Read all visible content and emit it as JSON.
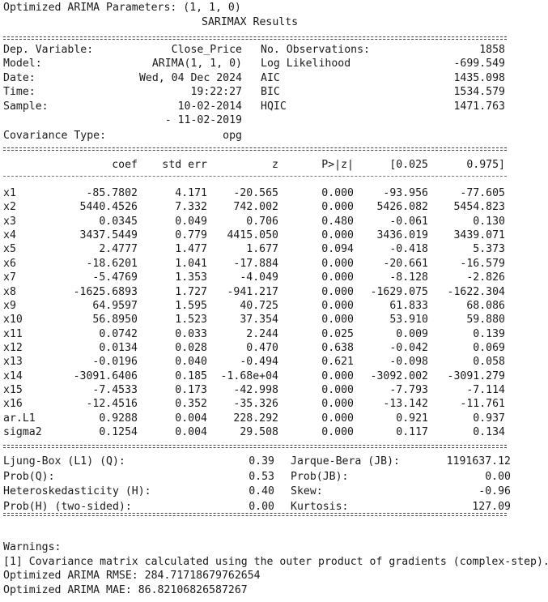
{
  "header_line": "Optimized ARIMA Parameters: (1, 1, 0)",
  "results_title": "SARIMAX Results",
  "info": {
    "dep_var_label": "Dep. Variable:",
    "dep_var_value": "Close_Price",
    "nobs_label": "No. Observations:",
    "nobs_value": "1858",
    "model_label": "Model:",
    "model_value": "ARIMA(1, 1, 0)",
    "loglik_label": "Log Likelihood",
    "loglik_value": "-699.549",
    "date_label": "Date:",
    "date_value": "Wed, 04 Dec 2024",
    "aic_label": "AIC",
    "aic_value": "1435.098",
    "time_label": "Time:",
    "time_value": "19:22:27",
    "bic_label": "BIC",
    "bic_value": "1534.579",
    "sample_label": "Sample:",
    "sample_start": "10-02-2014",
    "hqic_label": "HQIC",
    "hqic_value": "1471.763",
    "sample_end": "- 11-02-2019",
    "cov_label": "Covariance Type:",
    "cov_value": "opg"
  },
  "coef_headers": [
    "coef",
    "std err",
    "z",
    "P>|z|",
    "[0.025",
    "0.975]"
  ],
  "coef_rows": [
    [
      "x1",
      "-85.7802",
      "4.171",
      "-20.565",
      "0.000",
      "-93.956",
      "-77.605"
    ],
    [
      "x2",
      "5440.4526",
      "7.332",
      "742.002",
      "0.000",
      "5426.082",
      "5454.823"
    ],
    [
      "x3",
      "0.0345",
      "0.049",
      "0.706",
      "0.480",
      "-0.061",
      "0.130"
    ],
    [
      "x4",
      "3437.5449",
      "0.779",
      "4415.050",
      "0.000",
      "3436.019",
      "3439.071"
    ],
    [
      "x5",
      "2.4777",
      "1.477",
      "1.677",
      "0.094",
      "-0.418",
      "5.373"
    ],
    [
      "x6",
      "-18.6201",
      "1.041",
      "-17.884",
      "0.000",
      "-20.661",
      "-16.579"
    ],
    [
      "x7",
      "-5.4769",
      "1.353",
      "-4.049",
      "0.000",
      "-8.128",
      "-2.826"
    ],
    [
      "x8",
      "-1625.6893",
      "1.727",
      "-941.217",
      "0.000",
      "-1629.075",
      "-1622.304"
    ],
    [
      "x9",
      "64.9597",
      "1.595",
      "40.725",
      "0.000",
      "61.833",
      "68.086"
    ],
    [
      "x10",
      "56.8950",
      "1.523",
      "37.354",
      "0.000",
      "53.910",
      "59.880"
    ],
    [
      "x11",
      "0.0742",
      "0.033",
      "2.244",
      "0.025",
      "0.009",
      "0.139"
    ],
    [
      "x12",
      "0.0134",
      "0.028",
      "0.470",
      "0.638",
      "-0.042",
      "0.069"
    ],
    [
      "x13",
      "-0.0196",
      "0.040",
      "-0.494",
      "0.621",
      "-0.098",
      "0.058"
    ],
    [
      "x14",
      "-3091.6406",
      "0.185",
      "-1.68e+04",
      "0.000",
      "-3092.002",
      "-3091.279"
    ],
    [
      "x15",
      "-7.4533",
      "0.173",
      "-42.998",
      "0.000",
      "-7.793",
      "-7.114"
    ],
    [
      "x16",
      "-12.4516",
      "0.352",
      "-35.326",
      "0.000",
      "-13.142",
      "-11.761"
    ],
    [
      "ar.L1",
      "0.9288",
      "0.004",
      "228.292",
      "0.000",
      "0.921",
      "0.937"
    ],
    [
      "sigma2",
      "0.1254",
      "0.004",
      "29.508",
      "0.000",
      "0.117",
      "0.134"
    ]
  ],
  "diagnostics": [
    {
      "label": "Ljung-Box (L1) (Q):",
      "value": "0.39",
      "label2": "Jarque-Bera (JB):",
      "value2": "1191637.12"
    },
    {
      "label": "Prob(Q):",
      "value": "0.53",
      "label2": "Prob(JB):",
      "value2": "0.00"
    },
    {
      "label": "Heteroskedasticity (H):",
      "value": "0.40",
      "label2": "Skew:",
      "value2": "-0.96"
    },
    {
      "label": "Prob(H) (two-sided):",
      "value": "0.00",
      "label2": "Kurtosis:",
      "value2": "127.09"
    }
  ],
  "warnings_title": "Warnings:",
  "warning_1": "[1] Covariance matrix calculated using the outer product of gradients (complex-step).",
  "rmse_line": "Optimized ARIMA RMSE: 284.71718679762654",
  "mae_line": "Optimized ARIMA MAE: 86.82106826587267"
}
